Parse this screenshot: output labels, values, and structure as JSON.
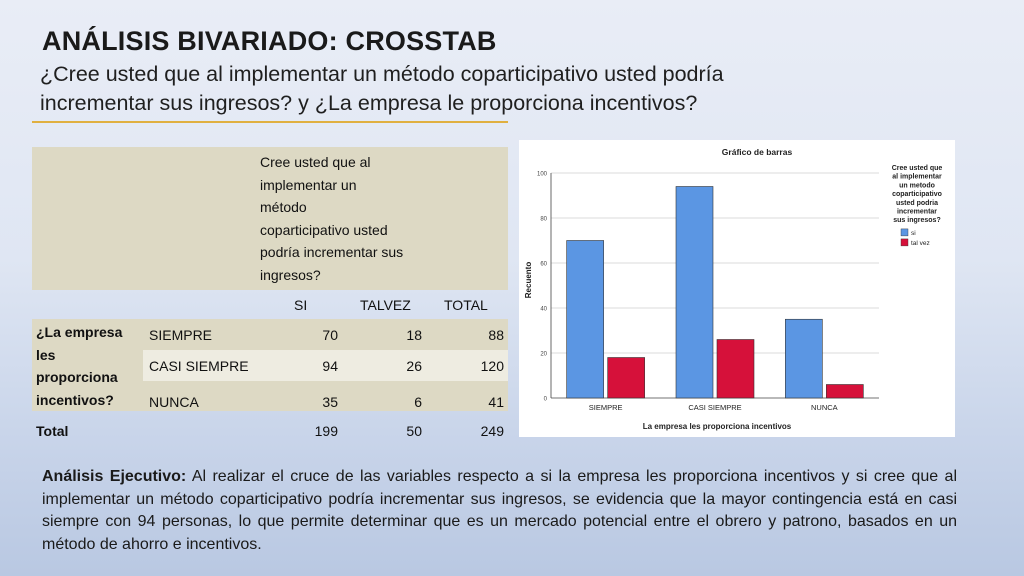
{
  "title": "ANÁLISIS BIVARIADO:  CROSSTAB",
  "subtitle": "¿Cree usted que al implementar un método coparticipativo usted podría incrementar sus ingresos? y ¿La empresa le proporciona incentivos?",
  "table": {
    "header_lines": [
      "Cree usted que al",
      "implementar un",
      "método",
      "coparticipativo usted",
      "podría incrementar sus",
      "ingresos?"
    ],
    "columns": [
      "SI",
      "TALVEZ",
      "TOTAL"
    ],
    "row_group_lines": [
      "¿La empresa",
      "les",
      "proporciona",
      "incentivos?"
    ],
    "rows": [
      {
        "label": "SIEMPRE",
        "si": "70",
        "talvez": "18",
        "total": "88"
      },
      {
        "label": "CASI SIEMPRE",
        "si": "94",
        "talvez": "26",
        "total": "120"
      },
      {
        "label": "NUNCA",
        "si": "35",
        "talvez": "6",
        "total": "41"
      }
    ],
    "total": {
      "label": "Total",
      "si": "199",
      "talvez": "50",
      "total": "249"
    },
    "colors": {
      "header_bg": "#ddd9c4",
      "row_band": "#ddd9c4",
      "row_alt": "#eeece1"
    }
  },
  "chart_data": {
    "type": "bar",
    "title": "Gráfico de barras",
    "xlabel": "La empresa les proporciona incentivos",
    "ylabel": "Recuento",
    "categories": [
      "SIEMPRE",
      "CASI SIEMPRE",
      "NUNCA"
    ],
    "series": [
      {
        "name": "si",
        "values": [
          70,
          94,
          35
        ],
        "color": "#5b96e3"
      },
      {
        "name": "tal vez",
        "values": [
          18,
          26,
          6
        ],
        "color": "#d6113a"
      }
    ],
    "ylim": [
      0,
      100
    ],
    "yticks": [
      0,
      20,
      40,
      60,
      80,
      100
    ],
    "grid": true,
    "legend_title": "Cree usted que al implementar un metodo coparticipativo usted podria incrementar sus ingresos?",
    "legend_title_lines": [
      "Cree usted que",
      "al implementar",
      "un metodo",
      "coparticipativo",
      "usted podria",
      "incrementar",
      "sus ingresos?"
    ],
    "legend_position": "right"
  },
  "analysis": {
    "label": "Análisis Ejecutivo:",
    "text": " Al realizar el cruce de las variables respecto a si la empresa les proporciona incentivos y si cree que al implementar un método coparticipativo podría incrementar sus ingresos, se evidencia que la mayor contingencia está en casi siempre con 94 personas, lo que permite determinar que es un mercado potencial entre el obrero y patrono, basados en un método de ahorro e incentivos."
  }
}
